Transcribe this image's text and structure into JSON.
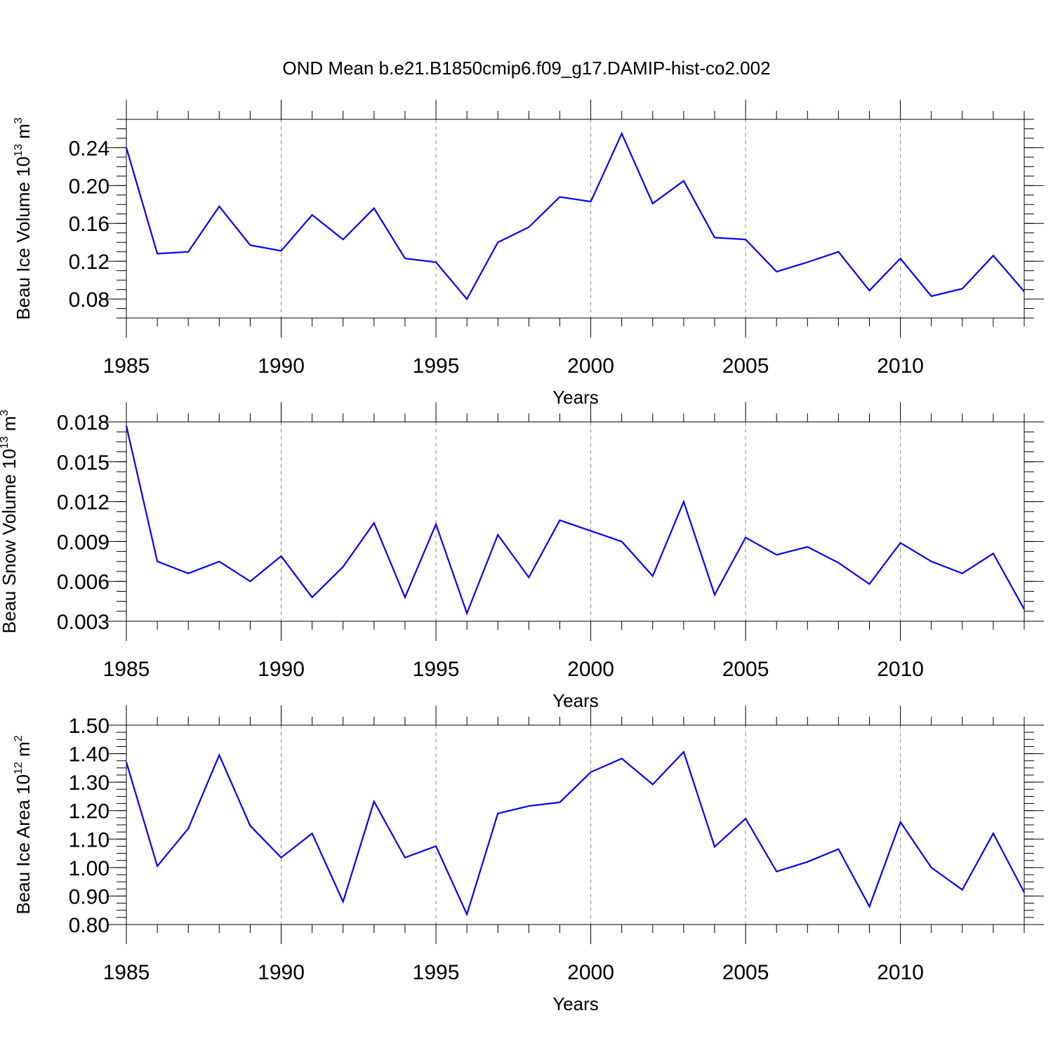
{
  "title": "OND Mean b.e21.B1850cmip6.f09_g17.DAMIP-hist-co2.002",
  "chart_data": [
    {
      "type": "line",
      "name": "ice-volume",
      "ylabel_main": "Beau Ice Volume 10",
      "ylabel_exp": "13",
      "ylabel_unit": "m",
      "ylabel_unit_exp": "3",
      "xlabel": "Years",
      "xlim": [
        1985,
        2014
      ],
      "ylim": [
        0.06,
        0.27
      ],
      "x_ticks": [
        1985,
        1990,
        1995,
        2000,
        2005,
        2010
      ],
      "y_ticks": [
        0.08,
        0.12,
        0.16,
        0.2,
        0.24
      ],
      "y_tick_labels": [
        "0.08",
        "0.12",
        "0.16",
        "0.20",
        "0.24"
      ],
      "y_minor_step": 0.01,
      "x": [
        1985,
        1986,
        1987,
        1988,
        1989,
        1990,
        1991,
        1992,
        1993,
        1994,
        1995,
        1996,
        1997,
        1998,
        1999,
        2000,
        2001,
        2002,
        2003,
        2004,
        2005,
        2006,
        2007,
        2008,
        2009,
        2010,
        2011,
        2012,
        2013,
        2014
      ],
      "values": [
        0.24,
        0.128,
        0.13,
        0.178,
        0.137,
        0.131,
        0.169,
        0.143,
        0.176,
        0.123,
        0.119,
        0.08,
        0.14,
        0.156,
        0.188,
        0.183,
        0.255,
        0.181,
        0.205,
        0.145,
        0.143,
        0.109,
        0.119,
        0.13,
        0.089,
        0.123,
        0.083,
        0.091,
        0.126,
        0.088
      ]
    },
    {
      "type": "line",
      "name": "snow-volume",
      "ylabel_main": "Beau Snow Volume 10",
      "ylabel_exp": "13",
      "ylabel_unit": "m",
      "ylabel_unit_exp": "3",
      "xlabel": "Years",
      "xlim": [
        1985,
        2014
      ],
      "ylim": [
        0.003,
        0.018
      ],
      "x_ticks": [
        1985,
        1990,
        1995,
        2000,
        2005,
        2010
      ],
      "y_ticks": [
        0.003,
        0.006,
        0.009,
        0.012,
        0.015,
        0.018
      ],
      "y_tick_labels": [
        "0.003",
        "0.006",
        "0.009",
        "0.012",
        "0.015",
        "0.018"
      ],
      "y_minor_step": 0.00075,
      "x": [
        1985,
        1986,
        1987,
        1988,
        1989,
        1990,
        1991,
        1992,
        1993,
        1994,
        1995,
        1996,
        1997,
        1998,
        1999,
        2000,
        2001,
        2002,
        2003,
        2004,
        2005,
        2006,
        2007,
        2008,
        2009,
        2010,
        2011,
        2012,
        2013,
        2014
      ],
      "values": [
        0.0177,
        0.0075,
        0.0066,
        0.0075,
        0.006,
        0.0079,
        0.0048,
        0.0071,
        0.0104,
        0.0048,
        0.0103,
        0.0036,
        0.0095,
        0.0063,
        0.0106,
        0.0098,
        0.009,
        0.0064,
        0.012,
        0.005,
        0.0093,
        0.008,
        0.0086,
        0.0074,
        0.0058,
        0.0089,
        0.0075,
        0.0066,
        0.0081,
        0.0039
      ]
    },
    {
      "type": "line",
      "name": "ice-area",
      "ylabel_main": "Beau Ice Area 10",
      "ylabel_exp": "12",
      "ylabel_unit": "m",
      "ylabel_unit_exp": "2",
      "xlabel": "Years",
      "xlim": [
        1985,
        2014
      ],
      "ylim": [
        0.8,
        1.5
      ],
      "x_ticks": [
        1985,
        1990,
        1995,
        2000,
        2005,
        2010
      ],
      "y_ticks": [
        0.8,
        0.9,
        1.0,
        1.1,
        1.2,
        1.3,
        1.4,
        1.5
      ],
      "y_tick_labels": [
        "0.80",
        "0.90",
        "1.00",
        "1.10",
        "1.20",
        "1.30",
        "1.40",
        "1.50"
      ],
      "y_minor_step": 0.025,
      "x": [
        1985,
        1986,
        1987,
        1988,
        1989,
        1990,
        1991,
        1992,
        1993,
        1994,
        1995,
        1996,
        1997,
        1998,
        1999,
        2000,
        2001,
        2002,
        2003,
        2004,
        2005,
        2006,
        2007,
        2008,
        2009,
        2010,
        2011,
        2012,
        2013,
        2014
      ],
      "values": [
        1.37,
        1.005,
        1.137,
        1.395,
        1.147,
        1.035,
        1.12,
        0.88,
        1.232,
        1.035,
        1.075,
        0.836,
        1.19,
        1.216,
        1.229,
        1.335,
        1.383,
        1.292,
        1.406,
        1.073,
        1.172,
        0.986,
        1.02,
        1.065,
        0.863,
        1.16,
        1.0,
        0.922,
        1.12,
        0.913
      ]
    }
  ]
}
